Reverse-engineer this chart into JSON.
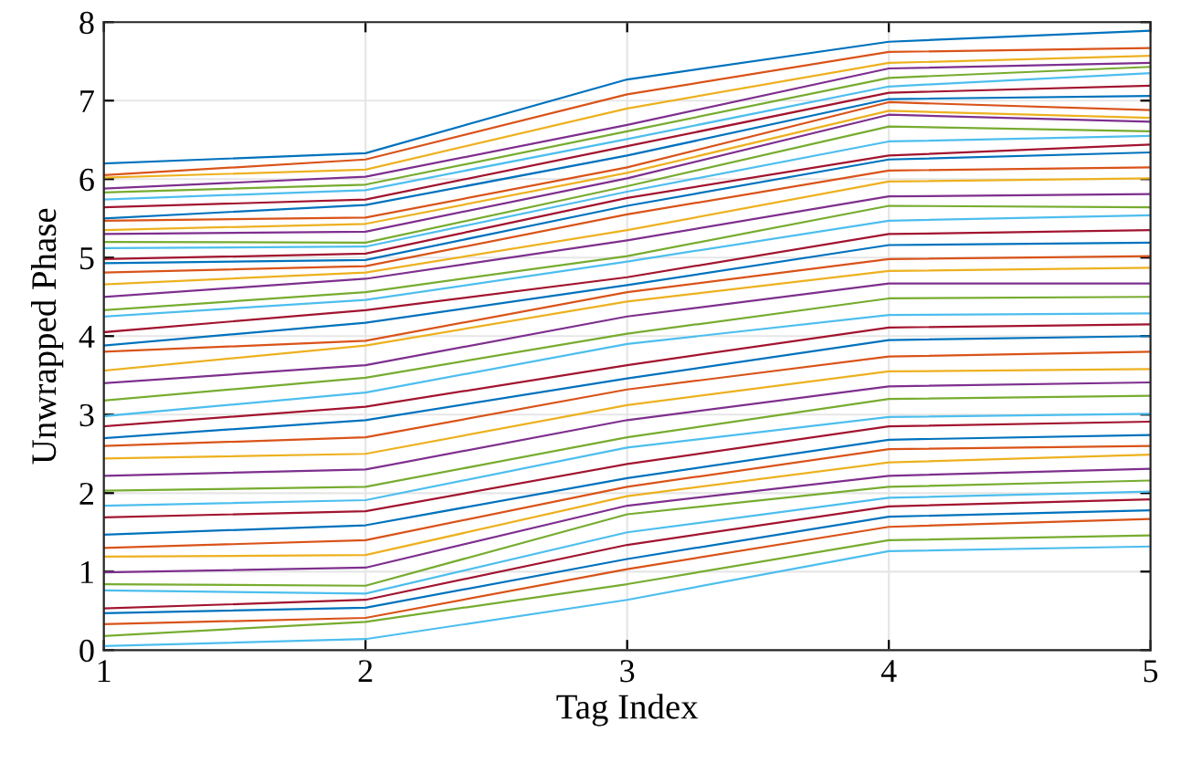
{
  "chart_data": {
    "type": "line",
    "xlabel": "Tag Index",
    "ylabel": "Unwrapped Phase",
    "x": [
      1,
      2,
      3,
      4,
      5
    ],
    "xlim": [
      1,
      5
    ],
    "xticks": [
      1,
      2,
      3,
      4,
      5
    ],
    "ylim": [
      0,
      8
    ],
    "yticks": [
      0,
      1,
      2,
      3,
      4,
      5,
      6,
      7,
      8
    ],
    "grid": true,
    "marker": "none",
    "line_style": "solid",
    "series": [
      {
        "color": "#0072bd",
        "values": [
          6.2,
          6.33,
          7.27,
          7.75,
          7.89
        ]
      },
      {
        "color": "#d95319",
        "values": [
          6.05,
          6.25,
          7.08,
          7.62,
          7.67
        ]
      },
      {
        "color": "#edb120",
        "values": [
          6.02,
          6.12,
          6.9,
          7.48,
          7.57
        ]
      },
      {
        "color": "#7e2f8e",
        "values": [
          5.88,
          6.03,
          6.69,
          7.41,
          7.48
        ]
      },
      {
        "color": "#77ac30",
        "values": [
          5.83,
          5.93,
          6.61,
          7.29,
          7.43
        ]
      },
      {
        "color": "#4dbeee",
        "values": [
          5.74,
          5.86,
          6.51,
          7.18,
          7.35
        ]
      },
      {
        "color": "#a2142f",
        "values": [
          5.64,
          5.74,
          6.42,
          7.1,
          7.19
        ]
      },
      {
        "color": "#0072bd",
        "values": [
          5.5,
          5.67,
          6.3,
          7.02,
          7.06
        ]
      },
      {
        "color": "#d95319",
        "values": [
          5.47,
          5.51,
          6.15,
          6.98,
          6.88
        ]
      },
      {
        "color": "#edb120",
        "values": [
          5.35,
          5.43,
          6.08,
          6.87,
          6.78
        ]
      },
      {
        "color": "#7e2f8e",
        "values": [
          5.3,
          5.33,
          6.01,
          6.82,
          6.73
        ]
      },
      {
        "color": "#77ac30",
        "values": [
          5.2,
          5.19,
          5.91,
          6.67,
          6.61
        ]
      },
      {
        "color": "#4dbeee",
        "values": [
          5.12,
          5.14,
          5.84,
          6.48,
          6.55
        ]
      },
      {
        "color": "#a2142f",
        "values": [
          4.98,
          5.05,
          5.76,
          6.3,
          6.44
        ]
      },
      {
        "color": "#0072bd",
        "values": [
          4.93,
          4.97,
          5.66,
          6.25,
          6.34
        ]
      },
      {
        "color": "#d95319",
        "values": [
          4.81,
          4.89,
          5.55,
          6.11,
          6.15
        ]
      },
      {
        "color": "#edb120",
        "values": [
          4.66,
          4.81,
          5.35,
          5.97,
          6.01
        ]
      },
      {
        "color": "#7e2f8e",
        "values": [
          4.5,
          4.73,
          5.22,
          5.78,
          5.81
        ]
      },
      {
        "color": "#77ac30",
        "values": [
          4.33,
          4.56,
          5.02,
          5.66,
          5.64
        ]
      },
      {
        "color": "#4dbeee",
        "values": [
          4.25,
          4.46,
          4.95,
          5.47,
          5.54
        ]
      },
      {
        "color": "#a2142f",
        "values": [
          4.05,
          4.33,
          4.75,
          5.3,
          5.35
        ]
      },
      {
        "color": "#0072bd",
        "values": [
          3.88,
          4.17,
          4.65,
          5.16,
          5.19
        ]
      },
      {
        "color": "#d95319",
        "values": [
          3.8,
          3.94,
          4.56,
          4.98,
          5.02
        ]
      },
      {
        "color": "#edb120",
        "values": [
          3.56,
          3.88,
          4.44,
          4.83,
          4.87
        ]
      },
      {
        "color": "#7e2f8e",
        "values": [
          3.4,
          3.63,
          4.25,
          4.67,
          4.67
        ]
      },
      {
        "color": "#77ac30",
        "values": [
          3.18,
          3.47,
          4.03,
          4.48,
          4.5
        ]
      },
      {
        "color": "#4dbeee",
        "values": [
          2.98,
          3.28,
          3.9,
          4.27,
          4.29
        ]
      },
      {
        "color": "#a2142f",
        "values": [
          2.85,
          3.1,
          3.63,
          4.11,
          4.15
        ]
      },
      {
        "color": "#0072bd",
        "values": [
          2.7,
          2.93,
          3.46,
          3.95,
          4.0
        ]
      },
      {
        "color": "#d95319",
        "values": [
          2.6,
          2.71,
          3.32,
          3.74,
          3.8
        ]
      },
      {
        "color": "#edb120",
        "values": [
          2.44,
          2.5,
          3.12,
          3.55,
          3.58
        ]
      },
      {
        "color": "#7e2f8e",
        "values": [
          2.22,
          2.3,
          2.93,
          3.36,
          3.41
        ]
      },
      {
        "color": "#77ac30",
        "values": [
          2.03,
          2.08,
          2.71,
          3.2,
          3.24
        ]
      },
      {
        "color": "#4dbeee",
        "values": [
          1.84,
          1.91,
          2.58,
          2.97,
          3.01
        ]
      },
      {
        "color": "#a2142f",
        "values": [
          1.69,
          1.77,
          2.37,
          2.85,
          2.91
        ]
      },
      {
        "color": "#0072bd",
        "values": [
          1.47,
          1.59,
          2.19,
          2.68,
          2.74
        ]
      },
      {
        "color": "#d95319",
        "values": [
          1.3,
          1.4,
          2.08,
          2.56,
          2.6
        ]
      },
      {
        "color": "#edb120",
        "values": [
          1.19,
          1.21,
          1.96,
          2.39,
          2.49
        ]
      },
      {
        "color": "#7e2f8e",
        "values": [
          0.99,
          1.05,
          1.84,
          2.22,
          2.31
        ]
      },
      {
        "color": "#77ac30",
        "values": [
          0.84,
          0.82,
          1.73,
          2.08,
          2.16
        ]
      },
      {
        "color": "#4dbeee",
        "values": [
          0.76,
          0.72,
          1.5,
          1.94,
          2.02
        ]
      },
      {
        "color": "#a2142f",
        "values": [
          0.53,
          0.64,
          1.34,
          1.83,
          1.92
        ]
      },
      {
        "color": "#0072bd",
        "values": [
          0.47,
          0.54,
          1.16,
          1.7,
          1.78
        ]
      },
      {
        "color": "#d95319",
        "values": [
          0.33,
          0.41,
          1.03,
          1.57,
          1.67
        ]
      },
      {
        "color": "#77ac30",
        "values": [
          0.18,
          0.36,
          0.84,
          1.4,
          1.46
        ]
      },
      {
        "color": "#4dbeee",
        "values": [
          0.05,
          0.14,
          0.64,
          1.26,
          1.32
        ]
      }
    ]
  }
}
